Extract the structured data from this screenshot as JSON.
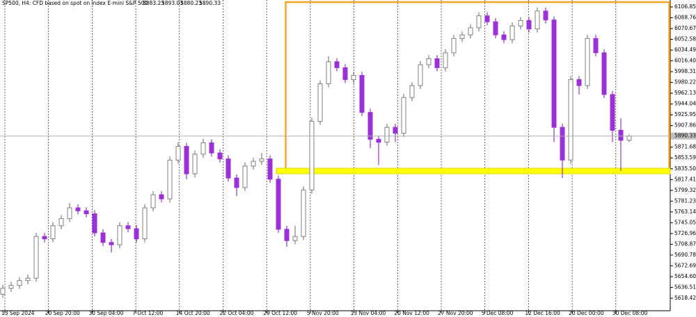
{
  "chart_data": {
    "type": "candlestick",
    "title": "SP500, H4:  CFD based on spot on index E-mini S&P 500",
    "up_color": "#808080",
    "down_color": "#9b30d9",
    "grid": true,
    "ylim": [
      5597.4,
      6118.5
    ],
    "yticks": [
      6106.85,
      6088.76,
      6070.67,
      6052.58,
      6034.49,
      {
        "value": 6016.4,
        "label": "6016.40"
      },
      5998.31,
      5980.22,
      5962.13,
      5944.04,
      5925.95,
      5907.86,
      5871.68,
      5853.59,
      {
        "value": 5835.5,
        "label": "5835.50"
      },
      5817.41,
      5799.32,
      5781.23,
      5763.14,
      5745.05,
      5726.96,
      5708.87,
      5690.78,
      5672.69,
      {
        "value": 5654.6,
        "label": "5654.60"
      },
      5636.51,
      5618.42
    ],
    "x_labels": [
      "13 Sep 2024",
      "20 Sep 20:00",
      "30 Sep 04:00",
      "7 Oct 12:00",
      "14 Oct 20:00",
      "22 Oct 04:00",
      "29 Oct 12:00",
      "5 Nov 20:00",
      "13 Nov 04:00",
      "20 Nov 12:00",
      "27 Nov 20:00",
      "5 Dec 08:00",
      "12 Dec 16:00",
      "20 Dec 00:00",
      "30 Dec 08:00"
    ],
    "open": [
      5625,
      5635,
      5640,
      5648,
      5652,
      5722,
      5718,
      5740,
      5752,
      5770,
      5765,
      5760,
      5728,
      5712,
      5708,
      5740,
      5735,
      5718,
      5770,
      5792,
      5785,
      5850,
      5873,
      5827,
      5860,
      5879,
      5862,
      5852,
      5820,
      5804,
      5840,
      5848,
      5852,
      5818,
      5734,
      5715,
      5722,
      5800,
      5915,
      5978,
      6015,
      6005,
      5985,
      5992,
      5930,
      5885,
      5880,
      5905,
      5895,
      5955,
      5975,
      6010,
      6020,
      6005,
      6030,
      6054,
      6060,
      6072,
      6092,
      6082,
      6060,
      6052,
      6075,
      6084,
      6070,
      6100,
      6085,
      5905,
      5850,
      5985,
      5975,
      6054,
      6030,
      5960,
      5900,
      5883.23
    ],
    "high": [
      5641,
      5646,
      5654,
      5658,
      5728,
      5728,
      5746,
      5758,
      5778,
      5776,
      5771,
      5766,
      5734,
      5718,
      5746,
      5746,
      5741,
      5776,
      5798,
      5798,
      5856,
      5880,
      5879,
      5866,
      5886,
      5885,
      5868,
      5858,
      5826,
      5846,
      5854,
      5862,
      5858,
      5824,
      5740,
      5740,
      5806,
      5921,
      5984,
      6024,
      6021,
      6011,
      5998,
      5998,
      5936,
      5891,
      5911,
      5911,
      5961,
      5981,
      6016,
      6026,
      6026,
      6036,
      6060,
      6066,
      6078,
      6098,
      6098,
      6088,
      6066,
      6081,
      6090,
      6090,
      6106,
      6106,
      6091,
      5911,
      5991,
      5991,
      6060,
      6060,
      6036,
      5966,
      5920,
      5893.03
    ],
    "low": [
      5619,
      5629,
      5634,
      5642,
      5646,
      5712,
      5712,
      5734,
      5746,
      5759,
      5754,
      5722,
      5706,
      5695,
      5702,
      5729,
      5712,
      5712,
      5764,
      5779,
      5779,
      5844,
      5818,
      5821,
      5854,
      5856,
      5846,
      5814,
      5790,
      5798,
      5834,
      5842,
      5812,
      5728,
      5705,
      5709,
      5716,
      5794,
      5909,
      5972,
      5999,
      5979,
      5979,
      5924,
      5870,
      5842,
      5874,
      5880,
      5889,
      5949,
      5969,
      6004,
      5999,
      5999,
      6024,
      6048,
      6054,
      6066,
      6076,
      6054,
      6046,
      6046,
      6069,
      6064,
      6064,
      6079,
      5880,
      5820,
      5844,
      5960,
      5969,
      6024,
      5954,
      5880,
      5832,
      5880.23
    ],
    "close": [
      5635,
      5640,
      5648,
      5652,
      5722,
      5718,
      5740,
      5752,
      5770,
      5765,
      5760,
      5728,
      5712,
      5708,
      5740,
      5735,
      5718,
      5770,
      5792,
      5785,
      5850,
      5873,
      5827,
      5860,
      5879,
      5862,
      5852,
      5820,
      5804,
      5840,
      5848,
      5852,
      5818,
      5734,
      5715,
      5722,
      5800,
      5915,
      5978,
      6015,
      6005,
      5985,
      5992,
      5930,
      5885,
      5880,
      5905,
      5895,
      5955,
      5975,
      6010,
      6020,
      6005,
      6030,
      6054,
      6060,
      6072,
      6092,
      6082,
      6060,
      6052,
      6075,
      6084,
      6070,
      6100,
      6085,
      5905,
      5850,
      5985,
      5975,
      6054,
      6030,
      5960,
      5900,
      5883.23,
      5890.33
    ]
  }
}
